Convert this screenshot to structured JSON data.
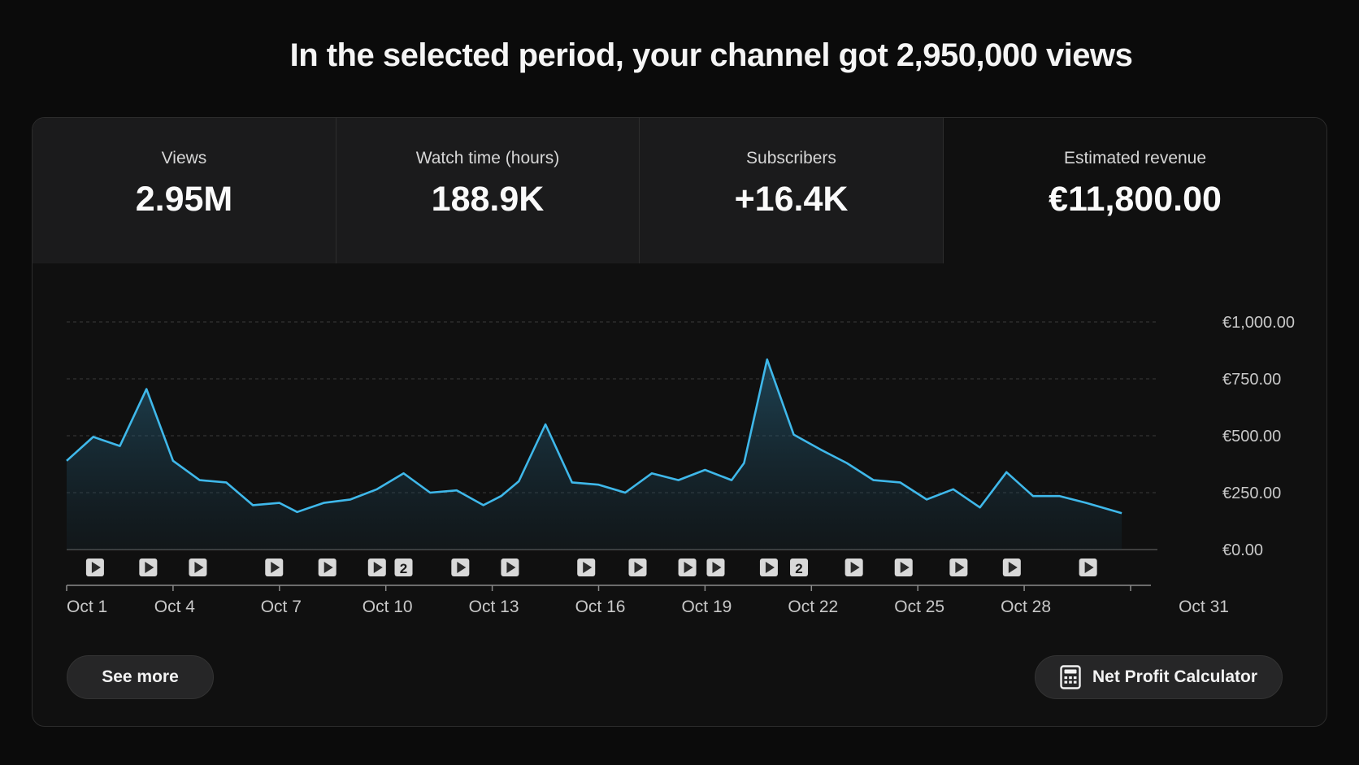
{
  "headline": "In the selected period, your channel got 2,950,000 views",
  "metrics": [
    {
      "label": "Views",
      "value": "2.95M"
    },
    {
      "label": "Watch time (hours)",
      "value": "188.9K"
    },
    {
      "label": "Subscribers",
      "value": "+16.4K"
    },
    {
      "label": "Estimated revenue",
      "value": "€11,800.00"
    }
  ],
  "selected_metric": 3,
  "buttons": {
    "see_more": "See more",
    "net_profit_calculator": "Net Profit Calculator",
    "net_profit_icon": "calculator-icon"
  },
  "colors": {
    "line": "#3fb8ea",
    "background": "#0b0b0b",
    "card": "#101010"
  },
  "chart_data": {
    "type": "area",
    "x": [
      "Oct 1",
      "Oct 2",
      "Oct 3",
      "Oct 4",
      "Oct 5",
      "Oct 6",
      "Oct 7",
      "Oct 8",
      "Oct 9",
      "Oct 10",
      "Oct 11",
      "Oct 12",
      "Oct 13",
      "Oct 14",
      "Oct 15",
      "Oct 16",
      "Oct 17",
      "Oct 18",
      "Oct 19",
      "Oct 20",
      "Oct 21",
      "Oct 22",
      "Oct 23",
      "Oct 24",
      "Oct 25",
      "Oct 26",
      "Oct 27",
      "Oct 28",
      "Oct 29",
      "Oct 30",
      "Oct 31"
    ],
    "points": [
      {
        "x": 1,
        "y": 390
      },
      {
        "x": 1.75,
        "y": 495
      },
      {
        "x": 2.5,
        "y": 455
      },
      {
        "x": 3.25,
        "y": 705
      },
      {
        "x": 4,
        "y": 390
      },
      {
        "x": 4.75,
        "y": 305
      },
      {
        "x": 5.5,
        "y": 295
      },
      {
        "x": 6.25,
        "y": 195
      },
      {
        "x": 7,
        "y": 205
      },
      {
        "x": 7.5,
        "y": 165
      },
      {
        "x": 8.25,
        "y": 205
      },
      {
        "x": 9,
        "y": 220
      },
      {
        "x": 9.75,
        "y": 265
      },
      {
        "x": 10.5,
        "y": 335
      },
      {
        "x": 11.25,
        "y": 250
      },
      {
        "x": 12,
        "y": 260
      },
      {
        "x": 12.75,
        "y": 195
      },
      {
        "x": 13.25,
        "y": 235
      },
      {
        "x": 13.75,
        "y": 300
      },
      {
        "x": 14.5,
        "y": 550
      },
      {
        "x": 15.25,
        "y": 295
      },
      {
        "x": 16,
        "y": 285
      },
      {
        "x": 16.75,
        "y": 250
      },
      {
        "x": 17.5,
        "y": 335
      },
      {
        "x": 18.25,
        "y": 305
      },
      {
        "x": 19,
        "y": 350
      },
      {
        "x": 19.75,
        "y": 305
      },
      {
        "x": 20.1,
        "y": 380
      },
      {
        "x": 20.75,
        "y": 835
      },
      {
        "x": 21.5,
        "y": 505
      },
      {
        "x": 22.25,
        "y": 440
      },
      {
        "x": 23,
        "y": 380
      },
      {
        "x": 23.75,
        "y": 305
      },
      {
        "x": 24.5,
        "y": 295
      },
      {
        "x": 25.25,
        "y": 220
      },
      {
        "x": 26,
        "y": 265
      },
      {
        "x": 26.75,
        "y": 185
      },
      {
        "x": 27.5,
        "y": 340
      },
      {
        "x": 28.25,
        "y": 235
      },
      {
        "x": 29,
        "y": 235
      },
      {
        "x": 29.75,
        "y": 205
      },
      {
        "x": 30.75,
        "y": 160
      }
    ],
    "y_ticks": [
      "€0.00",
      "€250.00",
      "€500.00",
      "€750.00",
      "€1,000.00"
    ],
    "y_tick_values": [
      0,
      250,
      500,
      750,
      1000
    ],
    "x_ticks": [
      "Oct 1",
      "Oct 4",
      "Oct 7",
      "Oct 10",
      "Oct 13",
      "Oct 16",
      "Oct 19",
      "Oct 22",
      "Oct 25",
      "Oct 28",
      "Oct 31"
    ],
    "x_tick_days": [
      1,
      4,
      7,
      10,
      13,
      16,
      19,
      22,
      25,
      28,
      31
    ],
    "ylim": [
      0,
      1000
    ],
    "xlim": [
      1,
      31
    ],
    "grid": true,
    "video_markers": [
      {
        "day": 1.8,
        "count": 1
      },
      {
        "day": 3.3,
        "count": 1
      },
      {
        "day": 4.7,
        "count": 1
      },
      {
        "day": 6.85,
        "count": 1
      },
      {
        "day": 8.35,
        "count": 1
      },
      {
        "day": 9.75,
        "count": 1
      },
      {
        "day": 10.5,
        "count": 2
      },
      {
        "day": 12.1,
        "count": 1
      },
      {
        "day": 13.5,
        "count": 1
      },
      {
        "day": 15.65,
        "count": 1
      },
      {
        "day": 17.1,
        "count": 1
      },
      {
        "day": 18.5,
        "count": 1
      },
      {
        "day": 19.3,
        "count": 1
      },
      {
        "day": 20.8,
        "count": 1
      },
      {
        "day": 21.65,
        "count": 2
      },
      {
        "day": 23.2,
        "count": 1
      },
      {
        "day": 24.6,
        "count": 1
      },
      {
        "day": 26.15,
        "count": 1
      },
      {
        "day": 27.65,
        "count": 1
      },
      {
        "day": 29.8,
        "count": 1
      }
    ]
  }
}
